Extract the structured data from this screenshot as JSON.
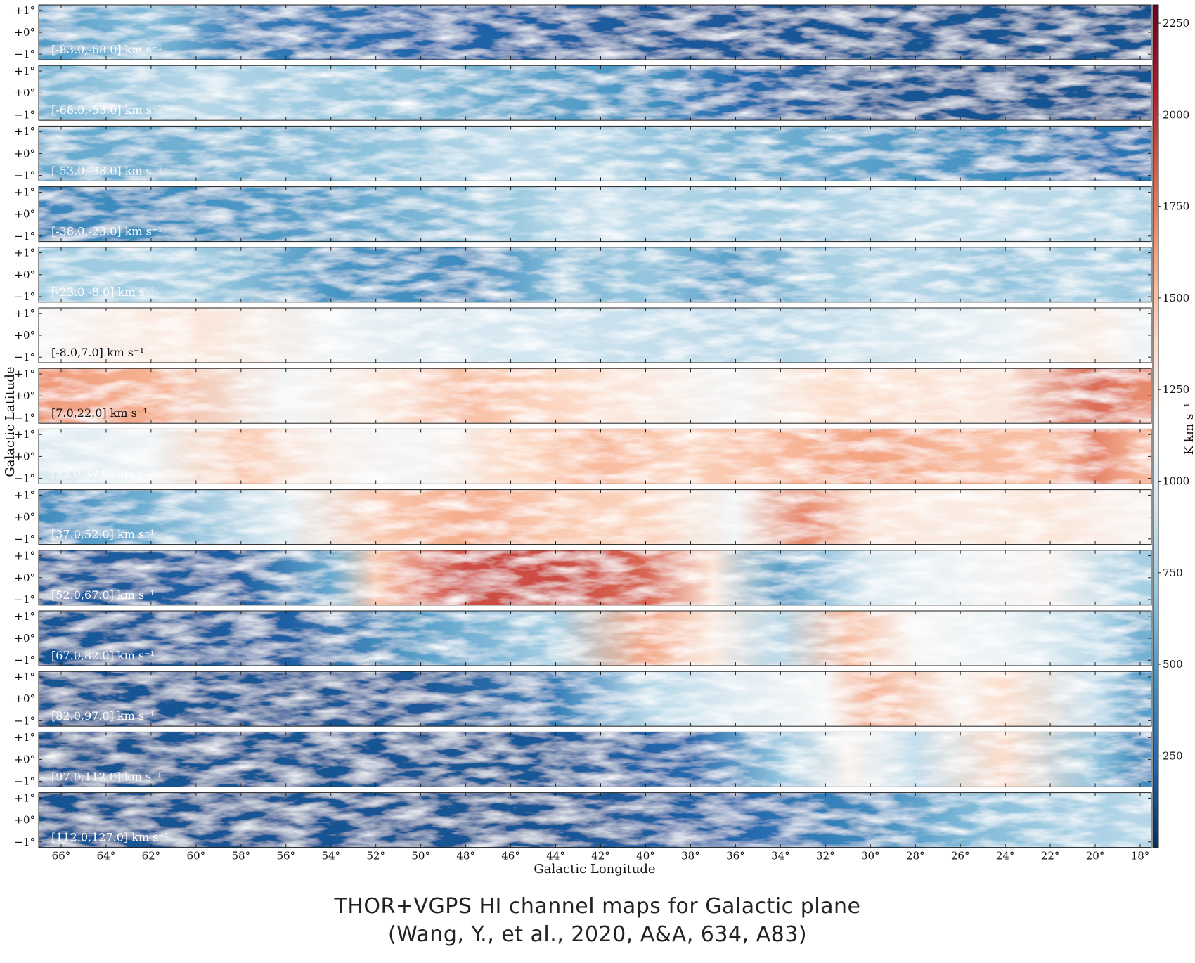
{
  "chart_data": {
    "type": "heatmap",
    "xlabel": "Galactic Longitude",
    "ylabel": "Galactic Latitude",
    "xlim": [
      67,
      17.5
    ],
    "x_ticks": [
      66,
      64,
      62,
      60,
      58,
      56,
      54,
      52,
      50,
      48,
      46,
      44,
      42,
      40,
      38,
      36,
      34,
      32,
      30,
      28,
      26,
      24,
      22,
      20,
      18
    ],
    "x_tick_labels": [
      "66°",
      "64°",
      "62°",
      "60°",
      "58°",
      "56°",
      "54°",
      "52°",
      "50°",
      "48°",
      "46°",
      "44°",
      "42°",
      "40°",
      "38°",
      "36°",
      "34°",
      "32°",
      "30°",
      "28°",
      "26°",
      "24°",
      "22°",
      "20°",
      "18°"
    ],
    "ylim": [
      -1.25,
      1.25
    ],
    "y_ticks": [
      1,
      0,
      -1
    ],
    "y_tick_labels": [
      "+1°",
      "+0°",
      "−1°"
    ],
    "colorbar": {
      "label": "K km s⁻¹",
      "range": [
        0,
        2300
      ],
      "ticks": [
        250,
        500,
        750,
        1000,
        1250,
        1500,
        1750,
        2000,
        2250
      ],
      "tick_labels": [
        "250",
        "500",
        "750",
        "1000",
        "1250",
        "1500",
        "1750",
        "2000",
        "2250"
      ],
      "colormap": "RdBu_r"
    },
    "panels": [
      {
        "label": "[-83.0,-68.0] km s⁻¹",
        "profile": [
          [
            67,
            500
          ],
          [
            62,
            650
          ],
          [
            58,
            360
          ],
          [
            50,
            230
          ],
          [
            40,
            180
          ],
          [
            30,
            160
          ],
          [
            18,
            150
          ]
        ]
      },
      {
        "label": "[-68.0,-53.0] km s⁻¹",
        "profile": [
          [
            67,
            620
          ],
          [
            60,
            820
          ],
          [
            52,
            680
          ],
          [
            45,
            540
          ],
          [
            40,
            470
          ],
          [
            36,
            260
          ],
          [
            30,
            160
          ],
          [
            18,
            150
          ]
        ]
      },
      {
        "label": "[-53.0,-38.0] km s⁻¹",
        "profile": [
          [
            67,
            560
          ],
          [
            60,
            600
          ],
          [
            52,
            680
          ],
          [
            46,
            850
          ],
          [
            42,
            780
          ],
          [
            36,
            620
          ],
          [
            30,
            520
          ],
          [
            24,
            440
          ],
          [
            20,
            300
          ],
          [
            18,
            300
          ]
        ]
      },
      {
        "label": "[-38.0,-23.0] km s⁻¹",
        "profile": [
          [
            67,
            400
          ],
          [
            60,
            450
          ],
          [
            54,
            540
          ],
          [
            46,
            720
          ],
          [
            42,
            900
          ],
          [
            38,
            780
          ],
          [
            34,
            740
          ],
          [
            30,
            830
          ],
          [
            26,
            860
          ],
          [
            22,
            840
          ],
          [
            18,
            800
          ]
        ]
      },
      {
        "label": "[-23.0,-8.0] km s⁻¹",
        "profile": [
          [
            67,
            720
          ],
          [
            60,
            760
          ],
          [
            54,
            480
          ],
          [
            48,
            420
          ],
          [
            44,
            640
          ],
          [
            40,
            700
          ],
          [
            36,
            520
          ],
          [
            32,
            760
          ],
          [
            28,
            820
          ],
          [
            24,
            700
          ],
          [
            20,
            780
          ],
          [
            18,
            700
          ]
        ]
      },
      {
        "label": "[-8.0,7.0] km s⁻¹",
        "profile": [
          [
            67,
            1150
          ],
          [
            60,
            1300
          ],
          [
            54,
            1100
          ],
          [
            50,
            1000
          ],
          [
            46,
            940
          ],
          [
            40,
            880
          ],
          [
            34,
            820
          ],
          [
            28,
            980
          ],
          [
            24,
            1080
          ],
          [
            20,
            1250
          ],
          [
            18,
            1100
          ]
        ]
      },
      {
        "label": "[7.0,22.0] km s⁻¹",
        "profile": [
          [
            67,
            1650
          ],
          [
            62,
            1550
          ],
          [
            56,
            1120
          ],
          [
            52,
            1260
          ],
          [
            48,
            1500
          ],
          [
            44,
            1400
          ],
          [
            40,
            1260
          ],
          [
            36,
            1120
          ],
          [
            32,
            1350
          ],
          [
            28,
            1320
          ],
          [
            24,
            1280
          ],
          [
            20,
            1800
          ],
          [
            18,
            1700
          ]
        ]
      },
      {
        "label": "[22.0,37.0] km s⁻¹",
        "profile": [
          [
            67,
            980
          ],
          [
            62,
            1100
          ],
          [
            58,
            1450
          ],
          [
            54,
            1200
          ],
          [
            50,
            1120
          ],
          [
            46,
            1380
          ],
          [
            42,
            1520
          ],
          [
            38,
            1420
          ],
          [
            34,
            1520
          ],
          [
            30,
            1620
          ],
          [
            26,
            1520
          ],
          [
            22,
            1480
          ],
          [
            20,
            1720
          ],
          [
            18,
            1550
          ]
        ]
      },
      {
        "label": "[37.0,52.0] km s⁻¹",
        "profile": [
          [
            67,
            420
          ],
          [
            62,
            600
          ],
          [
            56,
            1020
          ],
          [
            52,
            1450
          ],
          [
            48,
            1580
          ],
          [
            44,
            1450
          ],
          [
            40,
            1420
          ],
          [
            36,
            1120
          ],
          [
            33,
            1700
          ],
          [
            30,
            1300
          ],
          [
            26,
            1250
          ],
          [
            22,
            1300
          ],
          [
            18,
            1180
          ]
        ]
      },
      {
        "label": "[52.0,67.0] km s⁻¹",
        "profile": [
          [
            67,
            180
          ],
          [
            58,
            200
          ],
          [
            54,
            560
          ],
          [
            52,
            1450
          ],
          [
            48,
            1900
          ],
          [
            44,
            1900
          ],
          [
            40,
            1820
          ],
          [
            37,
            1300
          ],
          [
            34,
            520
          ],
          [
            30,
            980
          ],
          [
            26,
            1100
          ],
          [
            22,
            1180
          ],
          [
            18,
            760
          ]
        ]
      },
      {
        "label": "[67.0,82.0] km s⁻¹",
        "profile": [
          [
            67,
            160
          ],
          [
            56,
            200
          ],
          [
            50,
            520
          ],
          [
            44,
            760
          ],
          [
            40,
            1600
          ],
          [
            37,
            1260
          ],
          [
            34,
            820
          ],
          [
            31,
            1500
          ],
          [
            28,
            1150
          ],
          [
            24,
            1080
          ],
          [
            20,
            860
          ],
          [
            18,
            600
          ]
        ]
      },
      {
        "label": "[82.0,97.0] km s⁻¹",
        "profile": [
          [
            67,
            150
          ],
          [
            50,
            170
          ],
          [
            44,
            360
          ],
          [
            40,
            820
          ],
          [
            36,
            1000
          ],
          [
            32,
            1150
          ],
          [
            30,
            1550
          ],
          [
            26,
            1200
          ],
          [
            24,
            1350
          ],
          [
            20,
            880
          ],
          [
            18,
            520
          ]
        ]
      },
      {
        "label": "[97.0,112.0] km s⁻¹",
        "profile": [
          [
            67,
            150
          ],
          [
            46,
            160
          ],
          [
            38,
            240
          ],
          [
            34,
            700
          ],
          [
            31,
            1200
          ],
          [
            28,
            880
          ],
          [
            24,
            1360
          ],
          [
            20,
            700
          ],
          [
            18,
            420
          ]
        ]
      },
      {
        "label": "[112.0,127.0] km s⁻¹",
        "profile": [
          [
            67,
            150
          ],
          [
            44,
            155
          ],
          [
            36,
            230
          ],
          [
            30,
            420
          ],
          [
            26,
            620
          ],
          [
            22,
            740
          ],
          [
            18,
            820
          ]
        ]
      }
    ]
  },
  "caption": {
    "line1": "THOR+VGPS HI channel maps for Galactic plane",
    "line2": "(Wang, Y., et al., 2020, A&A, 634, A83)"
  }
}
